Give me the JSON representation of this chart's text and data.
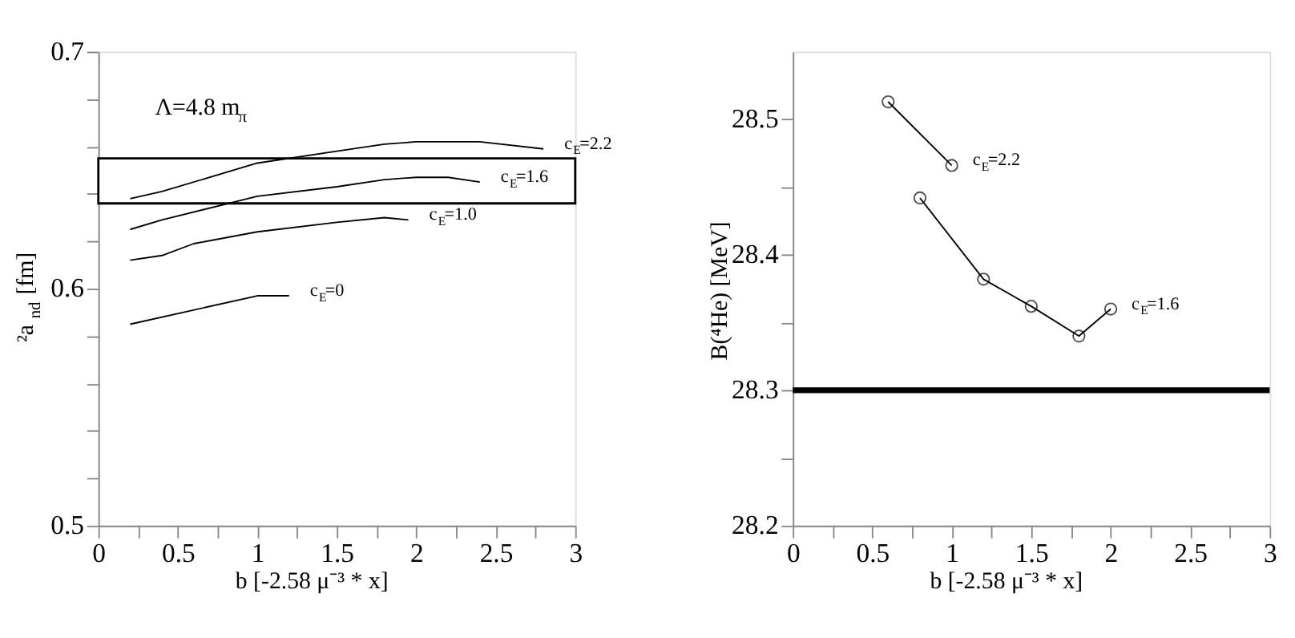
{
  "chart_data": [
    {
      "type": "line",
      "xlabel": "b [-2.58 μ⁻³ * x]",
      "ylabel": "²a$_{nd}$ [fm]",
      "xlim": [
        0,
        3
      ],
      "ylim": [
        0.5,
        0.7
      ],
      "xticks": [
        0,
        {
          "value": 0.25,
          "label": null
        },
        0.5,
        {
          "value": 0.75,
          "label": null
        },
        1,
        {
          "value": 1.25,
          "label": null
        },
        1.5,
        {
          "value": 1.75,
          "label": null
        },
        2,
        {
          "value": 2.25,
          "label": null
        },
        2.5,
        {
          "value": 2.75,
          "label": null
        },
        3
      ],
      "yticks": [
        0.5,
        {
          "value": 0.52,
          "label": null
        },
        {
          "value": 0.54,
          "label": null
        },
        {
          "value": 0.56,
          "label": null
        },
        {
          "value": 0.58,
          "label": null
        },
        0.6,
        {
          "value": 0.62,
          "label": null
        },
        {
          "value": 0.64,
          "label": null
        },
        {
          "value": 0.66,
          "label": null
        },
        {
          "value": 0.68,
          "label": null
        },
        0.7
      ],
      "marker": "none",
      "grid": false,
      "legend": false,
      "annotations": [
        "Λ=4.8 m$_{π}$"
      ],
      "bands": [
        {
          "axis": "y",
          "from": 0.636,
          "to": 0.655,
          "color": "#000000"
        }
      ],
      "series": [
        {
          "name": "c$_{E}$=2.2",
          "color": "#000000",
          "x": [
            0.2,
            0.4,
            1.0,
            1.5,
            1.8,
            2.0,
            2.4,
            2.8
          ],
          "values": [
            0.638,
            0.641,
            0.653,
            0.658,
            0.661,
            0.662,
            0.662,
            0.659
          ]
        },
        {
          "name": "c$_{E}$=1.6",
          "color": "#000000",
          "x": [
            0.2,
            0.4,
            1.0,
            1.5,
            1.8,
            2.0,
            2.2,
            2.4
          ],
          "values": [
            0.625,
            0.629,
            0.639,
            0.643,
            0.646,
            0.647,
            0.647,
            0.645
          ]
        },
        {
          "name": "c$_{E}$=1.0",
          "color": "#000000",
          "x": [
            0.2,
            0.4,
            0.6,
            1.0,
            1.5,
            1.8,
            1.95
          ],
          "values": [
            0.612,
            0.614,
            0.619,
            0.624,
            0.628,
            0.63,
            0.629
          ]
        },
        {
          "name": "c$_{E}$=0",
          "color": "#000000",
          "x": [
            0.2,
            1.0,
            1.2
          ],
          "values": [
            0.585,
            0.597,
            0.597
          ]
        }
      ]
    },
    {
      "type": "line",
      "xlabel": "b [-2.58 μ⁻³ * x]",
      "ylabel": "B(⁴He) [MeV]",
      "xlim": [
        0,
        3
      ],
      "ylim": [
        28.2,
        28.55
      ],
      "xticks": [
        0,
        {
          "value": 0.25,
          "label": null
        },
        0.5,
        {
          "value": 0.75,
          "label": null
        },
        1,
        {
          "value": 1.25,
          "label": null
        },
        1.5,
        {
          "value": 1.75,
          "label": null
        },
        2,
        {
          "value": 2.25,
          "label": null
        },
        2.5,
        {
          "value": 2.75,
          "label": null
        },
        3
      ],
      "yticks": [
        28.2,
        {
          "value": 28.25,
          "label": null
        },
        28.3,
        {
          "value": 28.35,
          "label": null
        },
        28.4,
        {
          "value": 28.45,
          "label": null
        },
        28.5
      ],
      "marker": "circle",
      "grid": false,
      "legend": false,
      "ref_lines": [
        {
          "axis": "y",
          "value": 28.3,
          "color": "#000000"
        }
      ],
      "series": [
        {
          "name": "c$_{E}$=2.2",
          "color": "#000000",
          "x": [
            0.6,
            1.0
          ],
          "values": [
            28.513,
            28.466
          ]
        },
        {
          "name": "c$_{E}$=1.6",
          "color": "#000000",
          "x": [
            0.8,
            1.2,
            1.5,
            1.8,
            2.0
          ],
          "values": [
            28.442,
            28.382,
            28.362,
            28.34,
            28.36
          ]
        }
      ]
    }
  ]
}
